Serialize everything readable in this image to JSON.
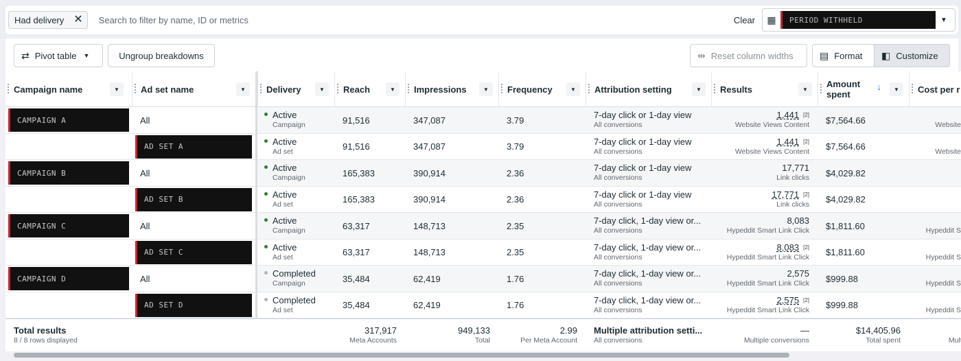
{
  "filter": {
    "chip_label": "Had delivery",
    "search_placeholder": "Search to filter by name, ID or metrics",
    "clear_label": "Clear",
    "date_value": "PERIOD WITHHELD"
  },
  "toolbar": {
    "pivot_label": "Pivot table",
    "ungroup_label": "Ungroup breakdowns",
    "reset_label": "Reset column widths",
    "format_label": "Format",
    "customize_label": "Customize"
  },
  "columns": [
    "Campaign name",
    "Ad set name",
    "Delivery",
    "Reach",
    "Impressions",
    "Frequency",
    "Attribution setting",
    "Results",
    "Amount spent",
    "Cost per r"
  ],
  "rows": [
    {
      "campaign": "CAMPAIGN A",
      "adset": "All",
      "status": "Active",
      "level": "Campaign",
      "reach": "91,516",
      "impressions": "347,087",
      "frequency": "3.79",
      "attr": "7-day click or 1-day view",
      "attr_sub": "All conversions",
      "result": "1,441",
      "result_tag": "[2]",
      "result_sub": "Website Views Content",
      "spent": "$7,564.66",
      "cost_sub": "Website"
    },
    {
      "campaign": "",
      "adset": "AD SET A",
      "status": "Active",
      "level": "Ad set",
      "reach": "91,516",
      "impressions": "347,087",
      "frequency": "3.79",
      "attr": "7-day click or 1-day view",
      "attr_sub": "All conversions",
      "result": "1,441",
      "result_tag": "[2]",
      "result_sub": "Website Views Content",
      "spent": "$7,564.66",
      "cost_sub": "Website"
    },
    {
      "campaign": "CAMPAIGN B",
      "adset": "All",
      "status": "Active",
      "level": "Campaign",
      "reach": "165,383",
      "impressions": "390,914",
      "frequency": "2.36",
      "attr": "7-day click or 1-day view",
      "attr_sub": "All conversions",
      "result": "17,771",
      "result_tag": "",
      "result_sub": "Link clicks",
      "spent": "$4,029.82",
      "cost_sub": ""
    },
    {
      "campaign": "",
      "adset": "AD SET B",
      "status": "Active",
      "level": "Ad set",
      "reach": "165,383",
      "impressions": "390,914",
      "frequency": "2.36",
      "attr": "7-day click or 1-day view",
      "attr_sub": "All conversions",
      "result": "17,771",
      "result_tag": "[2]",
      "result_sub": "Link clicks",
      "spent": "$4,029.82",
      "cost_sub": ""
    },
    {
      "campaign": "CAMPAIGN C",
      "adset": "All",
      "status": "Active",
      "level": "Campaign",
      "reach": "63,317",
      "impressions": "148,713",
      "frequency": "2.35",
      "attr": "7-day click, 1-day view or...",
      "attr_sub": "All conversions",
      "result": "8,083",
      "result_tag": "",
      "result_sub": "Hypeddit Smart Link Click",
      "spent": "$1,811.60",
      "cost_sub": "Hypeddit S"
    },
    {
      "campaign": "",
      "adset": "AD SET C",
      "status": "Active",
      "level": "Ad set",
      "reach": "63,317",
      "impressions": "148,713",
      "frequency": "2.35",
      "attr": "7-day click, 1-day view or...",
      "attr_sub": "All conversions",
      "result": "8,083",
      "result_tag": "[2]",
      "result_sub": "Hypeddit Smart Link Click",
      "spent": "$1,811.60",
      "cost_sub": "Hypeddit S"
    },
    {
      "campaign": "CAMPAIGN D",
      "adset": "All",
      "status": "Completed",
      "level": "Campaign",
      "reach": "35,484",
      "impressions": "62,419",
      "frequency": "1.76",
      "attr": "7-day click, 1-day view or...",
      "attr_sub": "All conversions",
      "result": "2,575",
      "result_tag": "",
      "result_sub": "Hypeddit Smart Link Click",
      "spent": "$999.88",
      "cost_sub": "Hypeddit S"
    },
    {
      "campaign": "",
      "adset": "AD SET D",
      "status": "Completed",
      "level": "Ad set",
      "reach": "35,484",
      "impressions": "62,419",
      "frequency": "1.76",
      "attr": "7-day click, 1-day view or...",
      "attr_sub": "All conversions",
      "result": "2,575",
      "result_tag": "[2]",
      "result_sub": "Hypeddit Smart Link Click",
      "spent": "$999.88",
      "cost_sub": "Hypeddit S"
    }
  ],
  "totals": {
    "label": "Total results",
    "sub": "8 / 8 rows displayed",
    "reach": "317,917",
    "reach_sub": "Meta Accounts",
    "impressions": "949,133",
    "impressions_sub": "Total",
    "frequency": "2.99",
    "frequency_sub": "Per Meta Account",
    "attr": "Multiple attribution setti...",
    "attr_sub": "All conversions",
    "result": "—",
    "result_sub": "Multiple conversions",
    "spent": "$14,405.96",
    "spent_sub": "Total spent",
    "cost_sub": "Multi"
  },
  "colors": {
    "active_dot": "#2e7d32",
    "completed_dot": "#b0b6bb",
    "alt_row": "#f5f6f7"
  }
}
